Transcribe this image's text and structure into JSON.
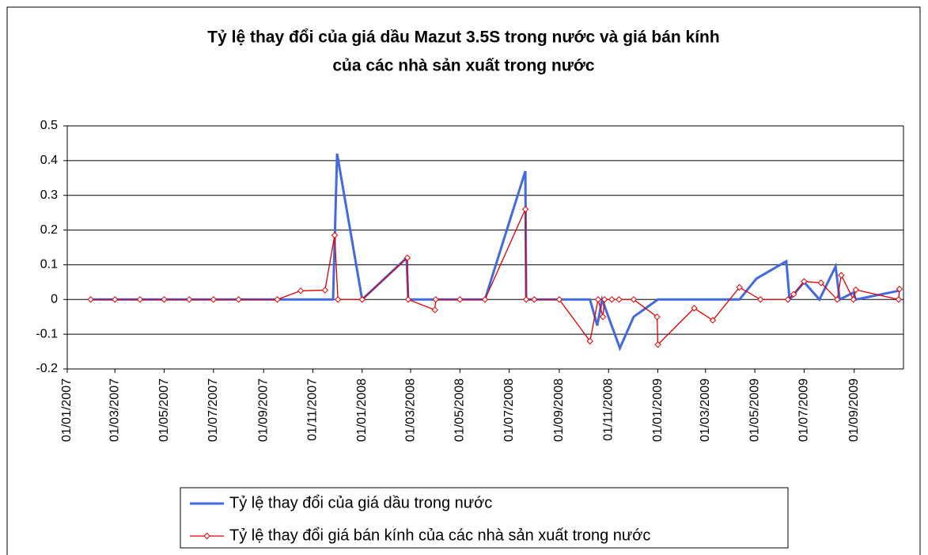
{
  "chart_data": {
    "type": "line",
    "title": "Tỷ lệ thay đổi của giá dầu Mazut 3.5S trong nước và giá bán kính",
    "subtitle": "của các nhà sản xuất trong nước",
    "xlim": [
      "2007-01-01",
      "2009-11-01"
    ],
    "xticks": [
      {
        "value": "2007-01-01",
        "label": "01/01/2007"
      },
      {
        "value": "2007-03-01",
        "label": "01/03/2007"
      },
      {
        "value": "2007-05-01",
        "label": "01/05/2007"
      },
      {
        "value": "2007-07-01",
        "label": "01/07/2007"
      },
      {
        "value": "2007-09-01",
        "label": "01/09/2007"
      },
      {
        "value": "2007-11-01",
        "label": "01/11/2007"
      },
      {
        "value": "2008-01-01",
        "label": "01/01/2008"
      },
      {
        "value": "2008-03-01",
        "label": "01/03/2008"
      },
      {
        "value": "2008-05-01",
        "label": "01/05/2008"
      },
      {
        "value": "2008-07-01",
        "label": "01/07/2008"
      },
      {
        "value": "2008-09-01",
        "label": "01/09/2008"
      },
      {
        "value": "2008-11-01",
        "label": "01/11/2008"
      },
      {
        "value": "2009-01-01",
        "label": "01/01/2009"
      },
      {
        "value": "2009-03-01",
        "label": "01/03/2009"
      },
      {
        "value": "2009-05-01",
        "label": "01/05/2009"
      },
      {
        "value": "2009-07-01",
        "label": "01/07/2009"
      },
      {
        "value": "2009-09-01",
        "label": "01/09/2009"
      }
    ],
    "ylim": [
      -0.2,
      0.5
    ],
    "yticks": [
      -0.2,
      -0.1,
      0,
      0.1,
      0.2,
      0.3,
      0.4,
      0.5
    ],
    "grid": true,
    "series": [
      {
        "name": "Tỷ lệ thay đổi của giá dầu trong nước",
        "color": "#4169e1",
        "markers": false,
        "x": [
          "2007-01-30",
          "2007-11-26",
          "2007-12-01",
          "2008-01-01",
          "2008-02-25",
          "2008-02-27",
          "2008-06-01",
          "2008-07-21",
          "2008-07-22",
          "2008-10-09",
          "2008-10-18",
          "2008-10-24",
          "2008-11-15",
          "2008-12-02",
          "2009-01-01",
          "2009-04-12",
          "2009-05-03",
          "2009-06-09",
          "2009-06-13",
          "2009-07-01",
          "2009-07-20",
          "2009-08-09",
          "2009-08-14",
          "2009-08-31",
          "2009-09-03",
          "2009-10-26"
        ],
        "values": [
          0,
          0,
          0.42,
          0,
          0.12,
          0,
          0,
          0.37,
          0,
          0,
          -0.075,
          0,
          -0.14,
          -0.05,
          0,
          0,
          0.06,
          0.11,
          0,
          0.05,
          0,
          0.095,
          0,
          0.02,
          0,
          0.025
        ]
      },
      {
        "name": "Tỷ lệ thay đổi giá bán kính của các nhà sản xuất trong nước",
        "color": "#e00000",
        "markers": true,
        "x": [
          "2007-01-30",
          "2007-03-01",
          "2007-04-01",
          "2007-05-01",
          "2007-06-01",
          "2007-07-01",
          "2007-08-01",
          "2007-09-18",
          "2007-10-17",
          "2007-11-16",
          "2007-11-28",
          "2007-12-02",
          "2008-01-01",
          "2008-02-26",
          "2008-02-27",
          "2008-03-31",
          "2008-04-01",
          "2008-05-01",
          "2008-06-01",
          "2008-07-21",
          "2008-07-22",
          "2008-08-01",
          "2008-09-01",
          "2008-10-09",
          "2008-10-19",
          "2008-10-25",
          "2008-10-27",
          "2008-11-05",
          "2008-11-14",
          "2008-12-02",
          "2008-12-31",
          "2009-01-01",
          "2009-02-15",
          "2009-03-10",
          "2009-04-12",
          "2009-05-08",
          "2009-06-11",
          "2009-06-18",
          "2009-07-01",
          "2009-07-22",
          "2009-08-11",
          "2009-08-16",
          "2009-08-31",
          "2009-09-03",
          "2009-10-26",
          "2009-10-27"
        ],
        "values": [
          0,
          0,
          0,
          0,
          0,
          0,
          0,
          0,
          0.025,
          0.027,
          0.185,
          0,
          0,
          0.12,
          0,
          -0.03,
          0,
          0,
          0,
          0.26,
          0,
          0,
          0,
          -0.12,
          0,
          -0.05,
          0,
          0,
          0,
          0,
          -0.05,
          -0.13,
          -0.025,
          -0.06,
          0.035,
          0,
          0,
          0.015,
          0.052,
          0.048,
          0,
          0.07,
          0,
          0.028,
          0,
          0.03
        ]
      }
    ]
  }
}
